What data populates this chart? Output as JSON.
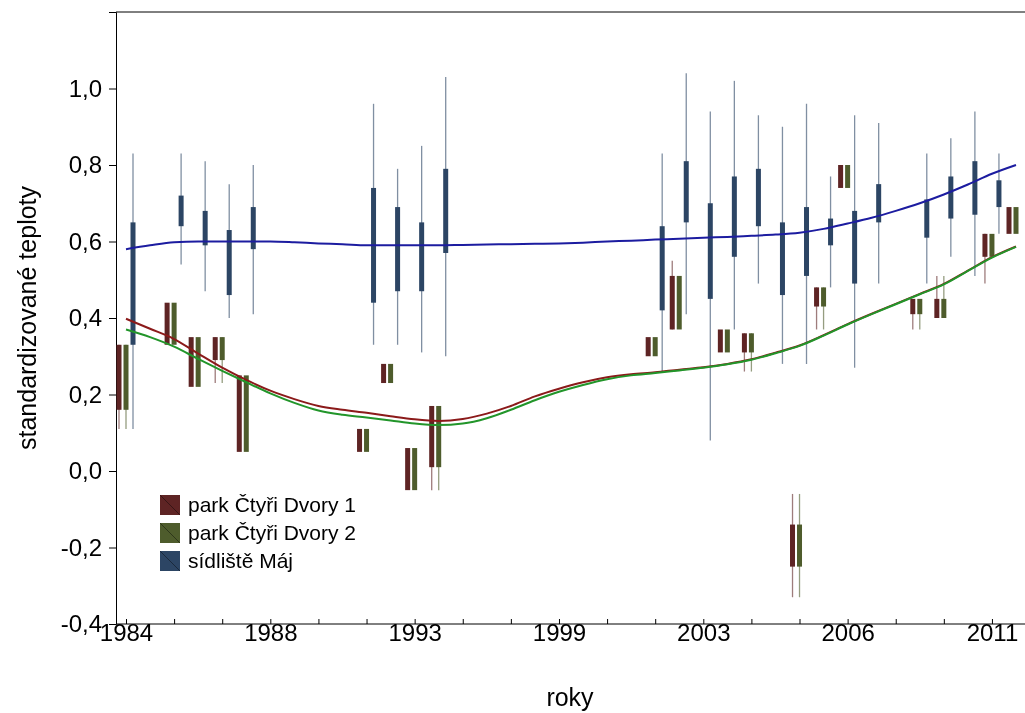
{
  "chart_data": {
    "type": "bar",
    "xlabel": "roky",
    "ylabel": "standardizované teploty",
    "categories": [
      "1984",
      null,
      null,
      null,
      null,
      null,
      "1988",
      null,
      null,
      null,
      null,
      null,
      "1993",
      null,
      null,
      null,
      null,
      null,
      "1999",
      null,
      null,
      null,
      null,
      null,
      "2003",
      null,
      null,
      null,
      null,
      null,
      "2006",
      null,
      null,
      null,
      null,
      null,
      "2011",
      null
    ],
    "ylim": [
      -0.4,
      1.2
    ],
    "yticks": [
      {
        "value": -0.4,
        "label": "-0,4"
      },
      {
        "value": -0.2,
        "label": "-0,2"
      },
      {
        "value": 0,
        "label": "0,0"
      },
      {
        "value": 0.2,
        "label": "0,2"
      },
      {
        "value": 0.4,
        "label": "0,4"
      },
      {
        "value": 0.6,
        "label": "0,6"
      },
      {
        "value": 0.8,
        "label": "0,8"
      },
      {
        "value": 1,
        "label": "1,0"
      }
    ],
    "grid": false,
    "legend": "bottom left",
    "series": [
      {
        "name": "park Čtyři Dvory 1",
        "color": "#5e2424",
        "base": [
          0.16,
          null,
          0.33,
          0.22,
          0.29,
          0.05,
          null,
          null,
          null,
          null,
          0.05,
          0.23,
          -0.05,
          0.01,
          null,
          null,
          null,
          null,
          null,
          null,
          null,
          null,
          0.3,
          0.37,
          null,
          0.31,
          0.31,
          null,
          -0.25,
          0.43,
          0.74,
          null,
          null,
          0.41,
          0.4,
          null,
          0.56,
          0.62
        ],
        "values": [
          0.17,
          null,
          0.11,
          0.13,
          0.06,
          0.2,
          null,
          null,
          null,
          null,
          0.06,
          0.05,
          0.11,
          0.16,
          null,
          null,
          null,
          null,
          null,
          null,
          null,
          null,
          0.05,
          0.14,
          null,
          0.06,
          0.05,
          null,
          0.11,
          0.05,
          0.06,
          null,
          null,
          0.04,
          0.05,
          null,
          0.06,
          0.07
        ],
        "errors": [
          [
            0.11,
            0.33
          ],
          null,
          null,
          null,
          [
            0.23,
            0.35
          ],
          null,
          null,
          null,
          null,
          null,
          null,
          null,
          null,
          [
            -0.05,
            0.17
          ],
          null,
          null,
          null,
          null,
          null,
          null,
          null,
          null,
          null,
          [
            0.37,
            0.55
          ],
          null,
          null,
          [
            0.26,
            0.36
          ],
          null,
          [
            -0.33,
            -0.06
          ],
          [
            0.37,
            0.48
          ],
          null,
          null,
          null,
          [
            0.37,
            0.45
          ],
          [
            0.4,
            0.51
          ],
          null,
          [
            0.49,
            0.62
          ],
          null
        ]
      },
      {
        "name": "park Čtyři Dvory 2",
        "color": "#4e5c2c",
        "base": [
          0.16,
          null,
          0.33,
          0.22,
          0.29,
          0.05,
          null,
          null,
          null,
          null,
          0.05,
          0.23,
          -0.05,
          0.01,
          null,
          null,
          null,
          null,
          null,
          null,
          null,
          null,
          0.3,
          0.37,
          null,
          0.31,
          0.31,
          null,
          -0.25,
          0.43,
          0.74,
          null,
          null,
          0.41,
          0.4,
          null,
          0.56,
          0.62
        ],
        "values": [
          0.17,
          null,
          0.11,
          0.13,
          0.06,
          0.2,
          null,
          null,
          null,
          null,
          0.06,
          0.05,
          0.11,
          0.16,
          null,
          null,
          null,
          null,
          null,
          null,
          null,
          null,
          0.05,
          0.14,
          null,
          0.06,
          0.05,
          null,
          0.11,
          0.05,
          0.06,
          null,
          null,
          0.04,
          0.05,
          null,
          0.06,
          0.07
        ],
        "errors": [
          [
            0.11,
            0.33
          ],
          null,
          null,
          null,
          [
            0.23,
            0.35
          ],
          null,
          null,
          null,
          null,
          null,
          null,
          null,
          null,
          [
            -0.05,
            0.17
          ],
          null,
          null,
          null,
          null,
          null,
          null,
          null,
          null,
          null,
          null,
          null,
          null,
          [
            0.26,
            0.36
          ],
          null,
          [
            -0.33,
            -0.06
          ],
          [
            0.37,
            0.48
          ],
          null,
          null,
          null,
          [
            0.37,
            0.45
          ],
          [
            0.4,
            0.51
          ],
          null,
          null,
          null
        ]
      },
      {
        "name": "sídliště Máj",
        "color": "#2c4564",
        "base": [
          0.33,
          null,
          0.64,
          0.59,
          0.46,
          0.58,
          null,
          null,
          null,
          null,
          0.44,
          0.47,
          0.47,
          0.57,
          null,
          null,
          null,
          null,
          null,
          null,
          null,
          null,
          0.42,
          0.65,
          0.45,
          0.56,
          0.64,
          0.46,
          0.51,
          0.59,
          0.49,
          0.65,
          null,
          0.61,
          0.66,
          0.67,
          0.69,
          null
        ],
        "values": [
          0.32,
          null,
          0.08,
          0.09,
          0.17,
          0.11,
          null,
          null,
          null,
          null,
          0.3,
          0.22,
          0.18,
          0.22,
          null,
          null,
          null,
          null,
          null,
          null,
          null,
          null,
          0.22,
          0.16,
          0.25,
          0.21,
          0.15,
          0.19,
          0.18,
          0.07,
          0.19,
          0.1,
          null,
          0.1,
          0.11,
          0.14,
          0.07,
          null
        ],
        "errors": [
          [
            0.11,
            0.83
          ],
          null,
          [
            0.54,
            0.83
          ],
          [
            0.47,
            0.81
          ],
          [
            0.4,
            0.75
          ],
          [
            0.41,
            0.8
          ],
          null,
          null,
          null,
          null,
          [
            0.33,
            0.96
          ],
          [
            0.33,
            0.79
          ],
          [
            0.31,
            0.85
          ],
          [
            0.3,
            1.03
          ],
          null,
          null,
          null,
          null,
          null,
          null,
          null,
          null,
          [
            0.26,
            0.83
          ],
          [
            0.41,
            1.04
          ],
          [
            0.08,
            0.94
          ],
          [
            0.37,
            1.02
          ],
          [
            0.49,
            0.93
          ],
          [
            0.28,
            0.9
          ],
          [
            0.28,
            0.96
          ],
          [
            0.48,
            0.77
          ],
          [
            0.27,
            0.93
          ],
          [
            0.49,
            0.91
          ],
          null,
          [
            0.49,
            0.83
          ],
          [
            0.56,
            0.87
          ],
          [
            0.51,
            0.94
          ],
          [
            0.62,
            0.83
          ],
          null
        ]
      },
      {
        "type": "line",
        "color": "#8b1a1a",
        "values": [
          0.398,
          0.372,
          0.345,
          0.307,
          0.27,
          0.238,
          0.21,
          0.188,
          0.17,
          0.16,
          0.152,
          0.143,
          0.135,
          0.131,
          0.136,
          0.15,
          0.17,
          0.195,
          0.215,
          0.232,
          0.245,
          0.253,
          0.258,
          0.265,
          0.271,
          0.28,
          0.292,
          0.309,
          0.328,
          0.355,
          0.384,
          0.411,
          0.437,
          0.463,
          0.489,
          0.524,
          0.559,
          0.587
        ]
      },
      {
        "type": "line",
        "color": "#22952a",
        "values": [
          0.37,
          0.35,
          0.325,
          0.293,
          0.262,
          0.232,
          0.203,
          0.178,
          0.158,
          0.147,
          0.14,
          0.132,
          0.124,
          0.12,
          0.124,
          0.138,
          0.16,
          0.185,
          0.207,
          0.225,
          0.24,
          0.25,
          0.256,
          0.263,
          0.27,
          0.279,
          0.291,
          0.308,
          0.327,
          0.354,
          0.383,
          0.41,
          0.436,
          0.462,
          0.488,
          0.523,
          0.558,
          0.586
        ]
      },
      {
        "type": "line",
        "color": "#1c1ca0",
        "values": [
          0.58,
          0.59,
          0.598,
          0.6,
          0.6,
          0.6,
          0.6,
          0.598,
          0.595,
          0.593,
          0.59,
          0.59,
          0.59,
          0.59,
          0.591,
          0.592,
          0.593,
          0.594,
          0.595,
          0.597,
          0.6,
          0.602,
          0.605,
          0.607,
          0.61,
          0.612,
          0.615,
          0.618,
          0.623,
          0.633,
          0.647,
          0.662,
          0.68,
          0.7,
          0.723,
          0.749,
          0.777,
          0.8
        ]
      }
    ]
  }
}
